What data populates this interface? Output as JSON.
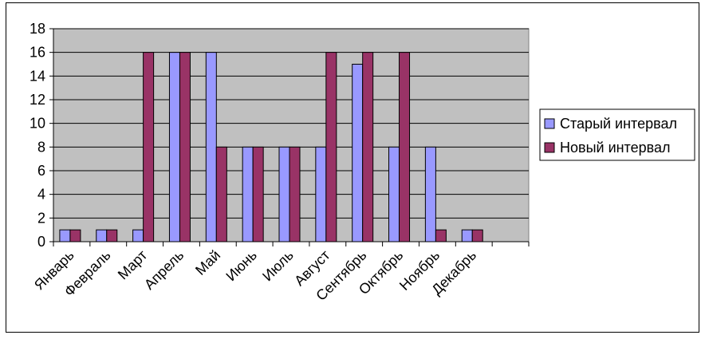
{
  "chart_data": {
    "type": "bar",
    "categories": [
      "Январь",
      "Февраль",
      "Март",
      "Апрель",
      "Май",
      "Июнь",
      "Июль",
      "Август",
      "Сентябрь",
      "Октябрь",
      "Ноябрь",
      "Декабрь",
      ""
    ],
    "series": [
      {
        "name": "Старый интервал",
        "color": "#9999ff",
        "values": [
          1,
          1,
          1,
          16,
          16,
          8,
          8,
          8,
          15,
          8,
          8,
          1,
          null
        ]
      },
      {
        "name": "Новый интервал",
        "color": "#993366",
        "values": [
          1,
          1,
          16,
          16,
          8,
          8,
          8,
          16,
          16,
          16,
          1,
          1,
          null
        ]
      }
    ],
    "ylim": [
      0,
      18
    ],
    "yticks": [
      0,
      2,
      4,
      6,
      8,
      10,
      12,
      14,
      16,
      18
    ],
    "grid": true,
    "plot_background": "#c0c0c0",
    "legend_position": "right"
  }
}
